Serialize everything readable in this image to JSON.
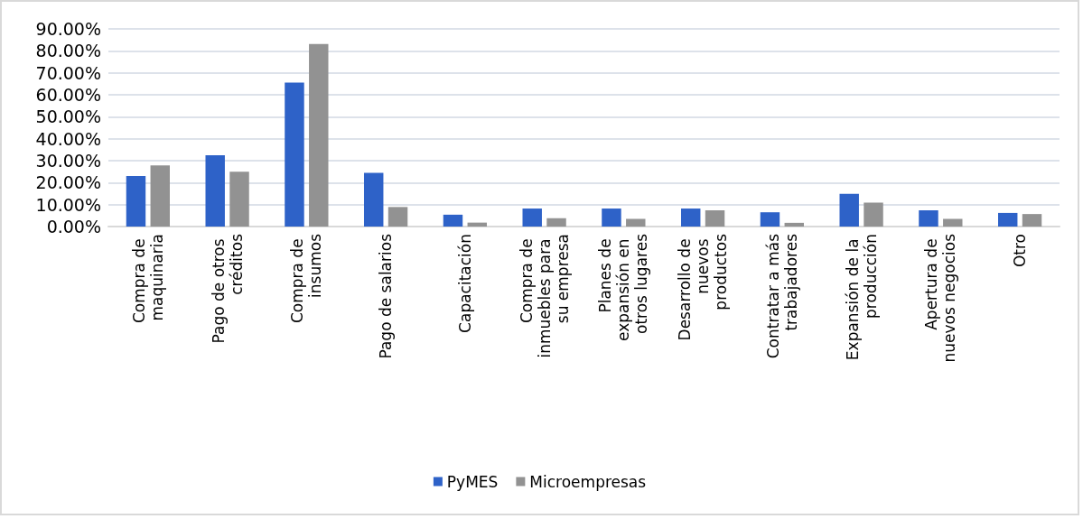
{
  "chart_data": {
    "type": "bar",
    "categories": [
      "Compra de maquinaria",
      "Pago de otros créditos",
      "Compra de insumos",
      "Pago de salarios",
      "Capacitación",
      "Compra de inmuebles para su empresa",
      "Planes de expansión en otros lugares",
      "Desarrollo de nuevos productos",
      "Contratar a más trabajadores",
      "Expansión de la producción",
      "Apertura de nuevos negocios",
      "Otro"
    ],
    "series": [
      {
        "name": "PyMES",
        "color": "#2e62c8",
        "values": [
          23.0,
          32.5,
          65.5,
          24.5,
          5.4,
          8.2,
          8.2,
          8.2,
          6.5,
          14.9,
          7.4,
          6.2
        ]
      },
      {
        "name": "Microempresas",
        "color": "#929292",
        "values": [
          27.8,
          25.0,
          83.1,
          8.9,
          1.8,
          3.8,
          3.5,
          7.4,
          1.7,
          10.9,
          3.5,
          5.7
        ]
      }
    ],
    "ylim": [
      0,
      90
    ],
    "yticks": [
      {
        "value": 0,
        "label": "0.00%"
      },
      {
        "value": 10,
        "label": "10.00%"
      },
      {
        "value": 20,
        "label": "20.00%"
      },
      {
        "value": 30,
        "label": "30.00%"
      },
      {
        "value": 40,
        "label": "40.00%"
      },
      {
        "value": 50,
        "label": "50.00%"
      },
      {
        "value": 60,
        "label": "60.00%"
      },
      {
        "value": 70,
        "label": "70.00%"
      },
      {
        "value": 80,
        "label": "80.00%"
      },
      {
        "value": 90,
        "label": "90.00%"
      }
    ],
    "grid": "y",
    "legend": "bottom"
  }
}
